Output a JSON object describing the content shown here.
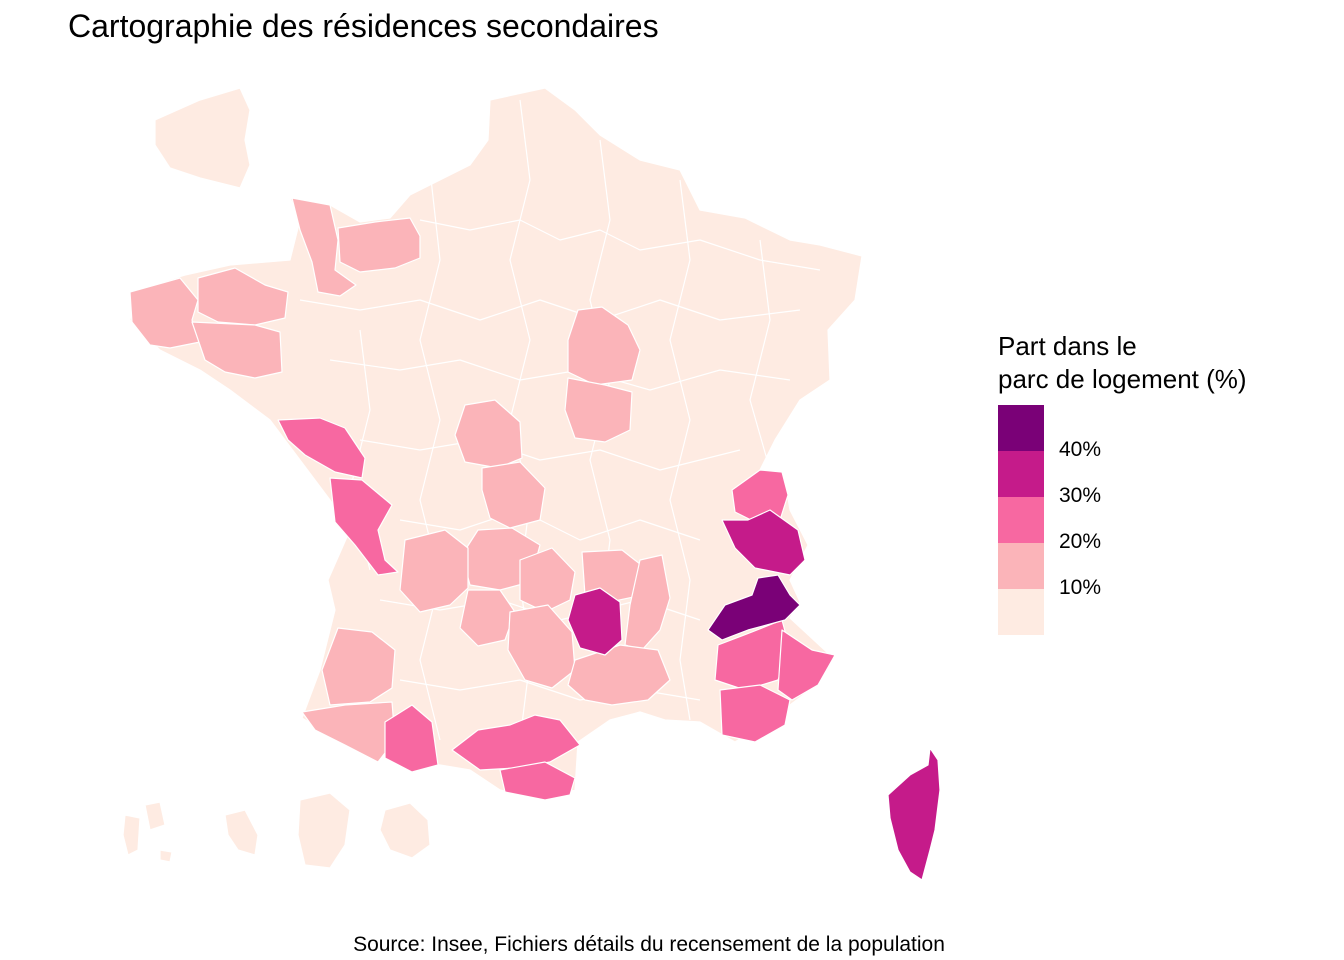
{
  "title": "Cartographie des résidences secondaires",
  "legend": {
    "title_line1": "Part dans le",
    "title_line2": "parc de logement (%)",
    "bins": [
      {
        "color": "#7a0177",
        "range": [
          40,
          50
        ]
      },
      {
        "color": "#c51b8a",
        "range": [
          30,
          40
        ]
      },
      {
        "color": "#f768a1",
        "range": [
          20,
          30
        ]
      },
      {
        "color": "#fbb4b9",
        "range": [
          10,
          20
        ]
      },
      {
        "color": "#feebe2",
        "range": [
          0,
          10
        ]
      }
    ],
    "labels": [
      "40%",
      "30%",
      "20%",
      "10%"
    ]
  },
  "source": "Source: Insee, Fichiers détails du recensement de la population",
  "regions": [
    {
      "id": "france-metro",
      "bin": 4
    },
    {
      "id": "overseas-1",
      "bin": 4
    },
    {
      "id": "overseas-2",
      "bin": 4
    },
    {
      "id": "overseas-3",
      "bin": 4
    },
    {
      "id": "overseas-4",
      "bin": 4
    },
    {
      "id": "overseas-5",
      "bin": 4
    },
    {
      "id": "manche",
      "bin": 3
    },
    {
      "id": "calvados",
      "bin": 3
    },
    {
      "id": "finistere",
      "bin": 3
    },
    {
      "id": "cotes-d-armor",
      "bin": 3
    },
    {
      "id": "morbihan",
      "bin": 3
    },
    {
      "id": "yonne",
      "bin": 3
    },
    {
      "id": "nievre",
      "bin": 3
    },
    {
      "id": "indre",
      "bin": 3
    },
    {
      "id": "creuse",
      "bin": 3
    },
    {
      "id": "correze",
      "bin": 3
    },
    {
      "id": "dordogne",
      "bin": 3
    },
    {
      "id": "lot",
      "bin": 3
    },
    {
      "id": "cantal",
      "bin": 3
    },
    {
      "id": "haute-loire",
      "bin": 3
    },
    {
      "id": "aveyron",
      "bin": 3
    },
    {
      "id": "ardeche",
      "bin": 3
    },
    {
      "id": "gard",
      "bin": 3
    },
    {
      "id": "landes",
      "bin": 3
    },
    {
      "id": "pyrenees-atlantiques",
      "bin": 3
    },
    {
      "id": "vendee",
      "bin": 2
    },
    {
      "id": "charente-maritime",
      "bin": 2
    },
    {
      "id": "haute-savoie",
      "bin": 2
    },
    {
      "id": "hautes-pyrenees",
      "bin": 2
    },
    {
      "id": "aude-herault",
      "bin": 2
    },
    {
      "id": "pyrenees-orientales",
      "bin": 2
    },
    {
      "id": "alpes-de-haute-provence",
      "bin": 2
    },
    {
      "id": "alpes-maritimes",
      "bin": 2
    },
    {
      "id": "var",
      "bin": 2
    },
    {
      "id": "savoie",
      "bin": 1
    },
    {
      "id": "lozere",
      "bin": 1
    },
    {
      "id": "corse",
      "bin": 1
    },
    {
      "id": "hautes-alpes",
      "bin": 0
    }
  ]
}
